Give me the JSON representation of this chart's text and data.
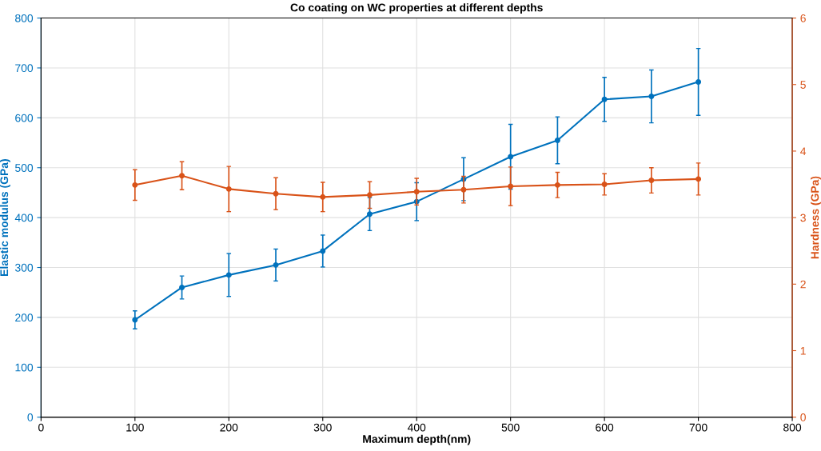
{
  "chart_data": {
    "type": "line",
    "title": "Co coating on WC properties at different depths",
    "xlabel": "Maximum depth(nm)",
    "ylabel": "Elastic modulus (GPa)",
    "y2label": "Hardness (GPa)",
    "x": [
      100,
      150,
      200,
      250,
      300,
      350,
      400,
      450,
      500,
      550,
      600,
      650,
      700
    ],
    "series": [
      {
        "color": "#0072bd",
        "values": [
          195,
          260,
          285,
          305,
          333,
          407,
          432,
          477,
          522,
          555,
          637,
          643,
          672
        ],
        "errors": [
          18,
          23,
          43,
          32,
          32,
          33,
          38,
          43,
          65,
          47,
          44,
          53,
          67
        ]
      },
      {
        "color": "#d95319",
        "axis": "y2",
        "values": [
          3.49,
          3.63,
          3.43,
          3.36,
          3.31,
          3.34,
          3.39,
          3.42,
          3.47,
          3.49,
          3.5,
          3.56,
          3.58
        ],
        "errors": [
          0.23,
          0.21,
          0.34,
          0.24,
          0.22,
          0.2,
          0.2,
          0.2,
          0.29,
          0.19,
          0.16,
          0.19,
          0.24
        ]
      }
    ],
    "xlim": [
      0,
      800
    ],
    "xticks": [
      0,
      100,
      200,
      300,
      400,
      500,
      600,
      700,
      800
    ],
    "ylim": [
      0,
      800
    ],
    "yticks": [
      0,
      100,
      200,
      300,
      400,
      500,
      600,
      700,
      800
    ],
    "y2lim": [
      0,
      6
    ],
    "y2ticks": [
      0,
      1,
      2,
      3,
      4,
      5,
      6
    ],
    "grid": true,
    "marker": "circle",
    "line_style": "solid"
  }
}
